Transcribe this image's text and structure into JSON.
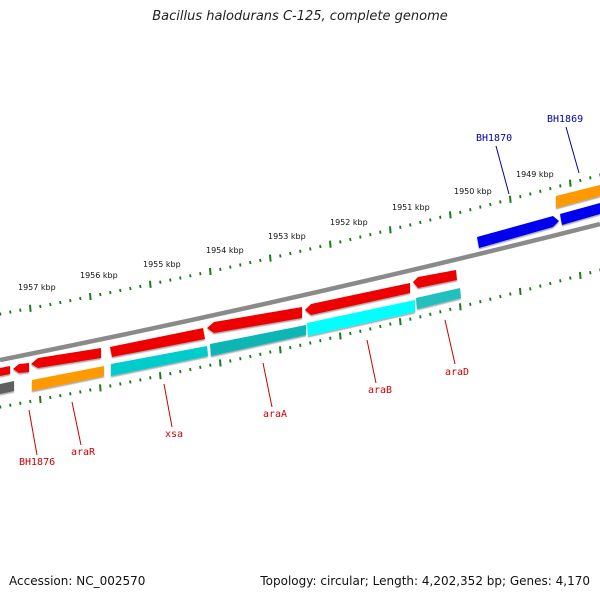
{
  "title": "Bacillus halodurans C-125, complete genome",
  "footer": {
    "accession": "Accession: NC_002570",
    "summary": "Topology: circular; Length: 4,202,352 bp; Genes: 4,170"
  },
  "colors": {
    "backbone": "#8a8a8a",
    "ticks": "#1a7a1a",
    "red": "#ee0000",
    "orange": "#ff9900",
    "cyan": "#00ffff",
    "teal": "#00c0c0",
    "blue": "#0000ee",
    "gray": "#606060",
    "label_red": "#cc0000",
    "label_blue": "#0000aa"
  },
  "ticks": [
    "1957 kbp",
    "1956 kbp",
    "1955 kbp",
    "1954 kbp",
    "1953 kbp",
    "1952 kbp",
    "1951 kbp",
    "1950 kbp",
    "1949 kbp"
  ],
  "genes": [
    {
      "label": "BH1876",
      "color": "label_red"
    },
    {
      "label": "araR",
      "color": "label_red"
    },
    {
      "label": "xsa",
      "color": "label_red"
    },
    {
      "label": "araA",
      "color": "label_red"
    },
    {
      "label": "araB",
      "color": "label_red"
    },
    {
      "label": "araD",
      "color": "label_red"
    },
    {
      "label": "BH1870",
      "color": "label_blue"
    },
    {
      "label": "BH1869",
      "color": "label_blue"
    }
  ]
}
